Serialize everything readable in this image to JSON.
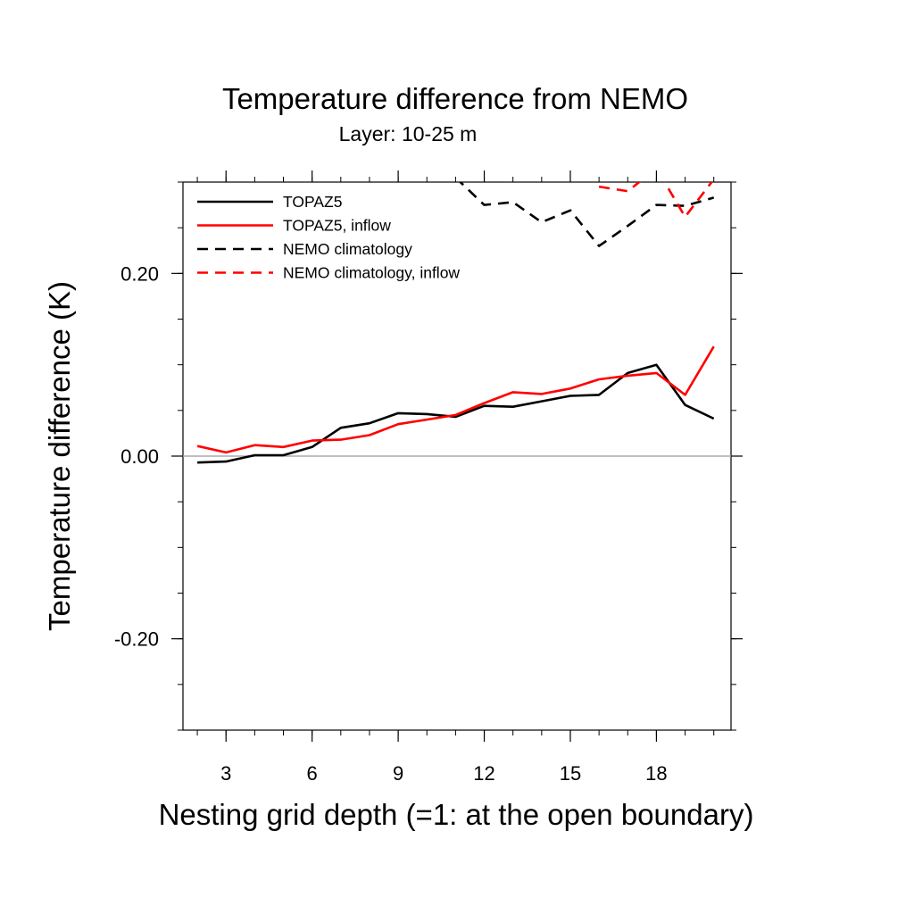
{
  "chart_data": {
    "type": "line",
    "title": "Temperature difference from NEMO",
    "subtitle": "Layer: 10-25 m",
    "xlabel": "Nesting grid depth (=1: at the open boundary)",
    "ylabel": "Temperature difference (K)",
    "xlim": [
      1.5,
      20.6
    ],
    "ylim": [
      -0.3,
      0.3
    ],
    "x_ticks": [
      3,
      6,
      9,
      12,
      15,
      18
    ],
    "x_tick_labels": [
      "3",
      "6",
      "9",
      "12",
      "15",
      "18"
    ],
    "y_ticks": [
      -0.2,
      0.0,
      0.2
    ],
    "y_tick_labels": [
      "-0.20",
      "0.00",
      "0.20"
    ],
    "zero_line": true,
    "grid": false,
    "legend_position": "top-left",
    "x": [
      2,
      3,
      4,
      5,
      6,
      7,
      8,
      9,
      10,
      11,
      12,
      13,
      14,
      15,
      16,
      17,
      18,
      19,
      20
    ],
    "series": [
      {
        "name": "TOPAZ5",
        "color": "#000000",
        "dash": "solid",
        "values": [
          -0.007,
          -0.006,
          0.001,
          0.001,
          0.01,
          0.031,
          0.036,
          0.047,
          0.046,
          0.043,
          0.055,
          0.054,
          0.06,
          0.066,
          0.067,
          0.091,
          0.1,
          0.056,
          0.041
        ]
      },
      {
        "name": "TOPAZ5, inflow",
        "color": "#ff0000",
        "dash": "solid",
        "values": [
          0.011,
          0.004,
          0.012,
          0.01,
          0.017,
          0.018,
          0.023,
          0.035,
          0.04,
          0.045,
          0.058,
          0.07,
          0.068,
          0.074,
          0.084,
          0.088,
          0.091,
          0.067,
          0.12
        ]
      },
      {
        "name": "NEMO climatology",
        "color": "#000000",
        "dash": "dashed",
        "values": [
          null,
          null,
          null,
          null,
          null,
          null,
          null,
          null,
          null,
          0.305,
          0.275,
          0.278,
          0.256,
          0.269,
          0.23,
          0.252,
          0.275,
          0.274,
          0.283
        ]
      },
      {
        "name": "NEMO climatology, inflow",
        "color": "#ff0000",
        "dash": "dashed",
        "values": [
          null,
          null,
          null,
          null,
          null,
          null,
          null,
          null,
          null,
          null,
          null,
          null,
          null,
          null,
          0.295,
          0.29,
          0.315,
          0.262,
          0.303
        ]
      }
    ]
  }
}
